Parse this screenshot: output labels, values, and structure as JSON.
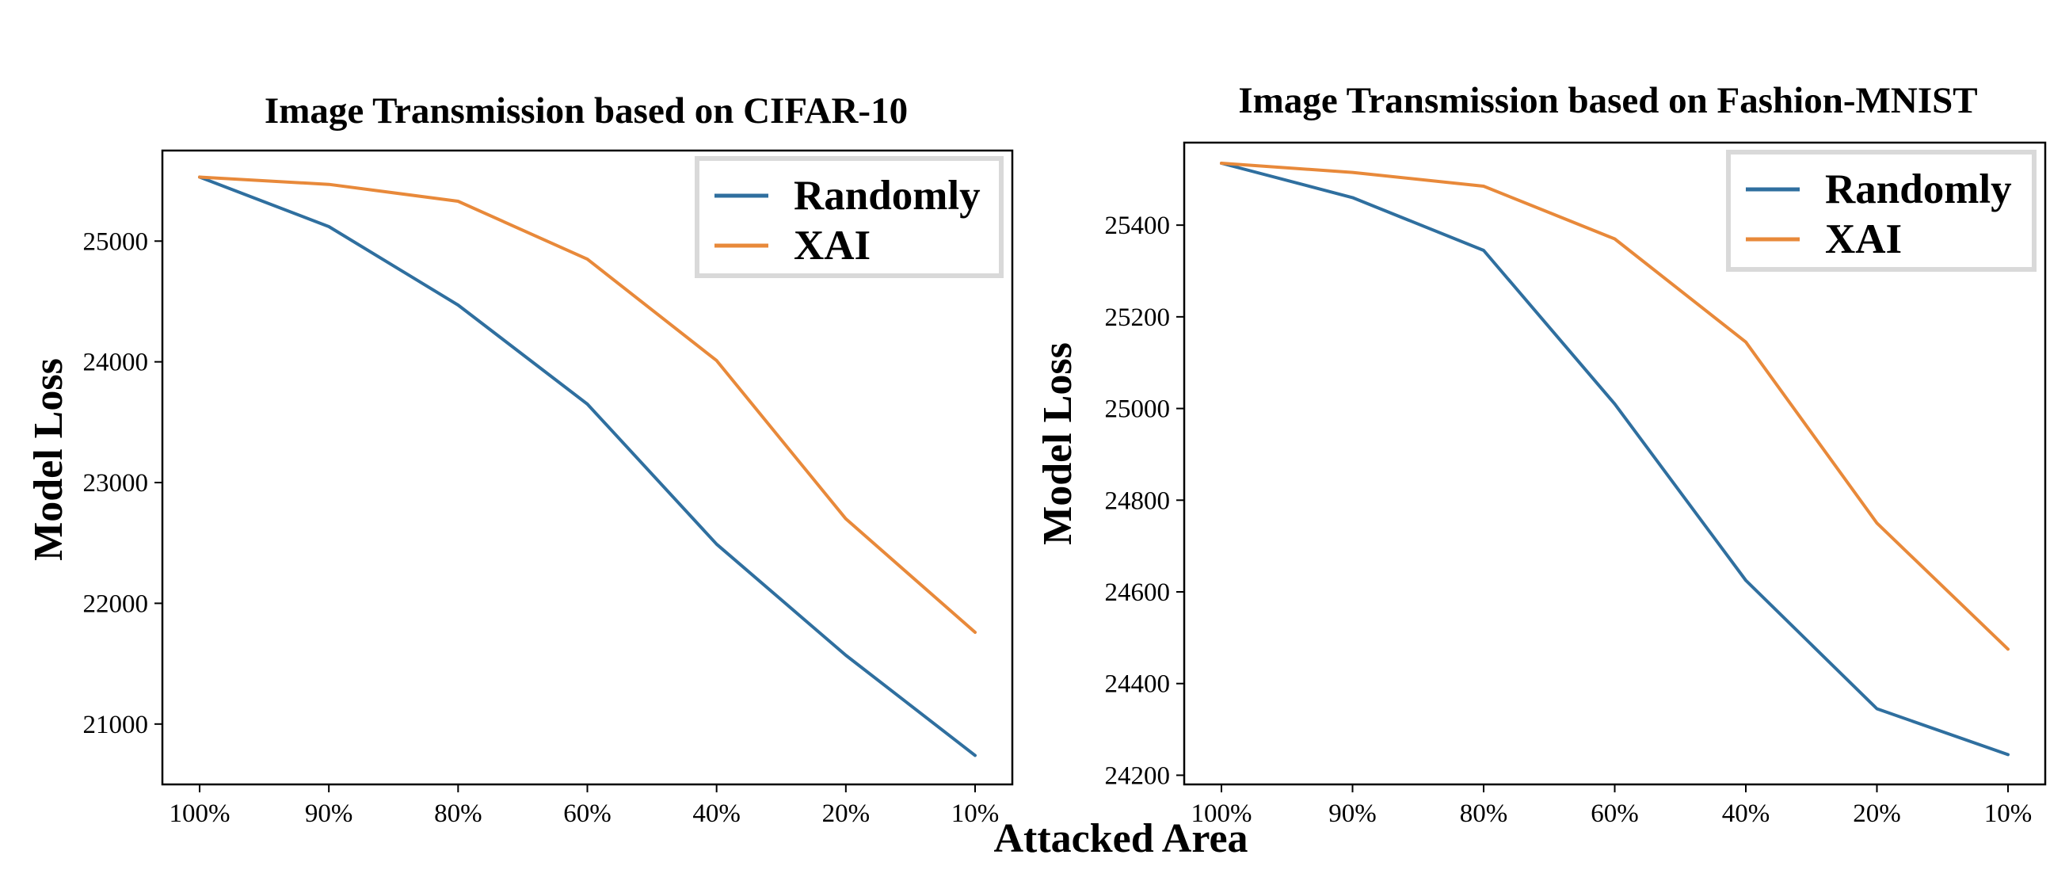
{
  "colors": {
    "randomly": "#2f6f9f",
    "xai": "#e8893a",
    "axis": "#000000",
    "legend_frame": "#d9d9d9"
  },
  "shared_xlabel": "Attacked Area",
  "chart_data": [
    {
      "type": "line",
      "title": "Image Transmission based on CIFAR-10",
      "xlabel": "Attacked Area",
      "ylabel": "Model Loss",
      "categories": [
        "100%",
        "90%",
        "80%",
        "60%",
        "40%",
        "20%",
        "10%"
      ],
      "ylim": [
        20500,
        25750
      ],
      "yticks": [
        21000,
        22000,
        23000,
        24000,
        25000
      ],
      "legend": "top-right",
      "series": [
        {
          "name": "Randomly",
          "color": "#2f6f9f",
          "values": [
            25530,
            25120,
            24470,
            23650,
            22490,
            21570,
            20740
          ]
        },
        {
          "name": "XAI",
          "color": "#e8893a",
          "values": [
            25530,
            25470,
            25330,
            24850,
            24010,
            22700,
            21760
          ]
        }
      ]
    },
    {
      "type": "line",
      "title": "Image Transmission based on Fashion-MNIST",
      "xlabel": "Attacked Area",
      "ylabel": "Model Loss",
      "categories": [
        "100%",
        "90%",
        "80%",
        "60%",
        "40%",
        "20%",
        "10%"
      ],
      "ylim": [
        24180,
        25580
      ],
      "yticks": [
        24200,
        24400,
        24600,
        24800,
        25000,
        25200,
        25400
      ],
      "legend": "top-right",
      "series": [
        {
          "name": "Randomly",
          "color": "#2f6f9f",
          "values": [
            25535,
            25460,
            25345,
            25010,
            24625,
            24345,
            24245
          ]
        },
        {
          "name": "XAI",
          "color": "#e8893a",
          "values": [
            25535,
            25515,
            25485,
            25370,
            25145,
            24750,
            24475
          ]
        }
      ]
    }
  ]
}
